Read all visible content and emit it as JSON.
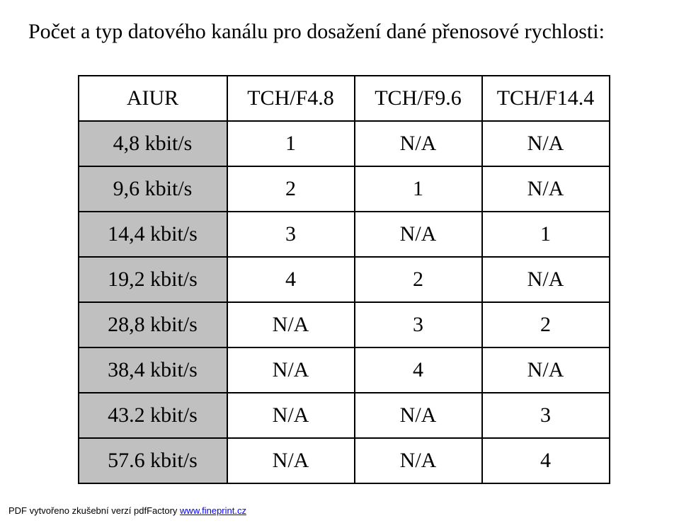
{
  "title": "Počet a typ datového kanálu pro dosažení dané přenosové rychlosti:",
  "table": {
    "columns": [
      "AIUR",
      "TCH/F4.8",
      "TCH/F9.6",
      "TCH/F14.4"
    ],
    "rows": [
      {
        "label": "4,8 kbit/s",
        "cells": [
          "1",
          "N/A",
          "N/A"
        ]
      },
      {
        "label": "9,6 kbit/s",
        "cells": [
          "2",
          "1",
          "N/A"
        ]
      },
      {
        "label": "14,4 kbit/s",
        "cells": [
          "3",
          "N/A",
          "1"
        ]
      },
      {
        "label": "19,2 kbit/s",
        "cells": [
          "4",
          "2",
          "N/A"
        ]
      },
      {
        "label": "28,8 kbit/s",
        "cells": [
          "N/A",
          "3",
          "2"
        ]
      },
      {
        "label": "38,4 kbit/s",
        "cells": [
          "N/A",
          "4",
          "N/A"
        ]
      },
      {
        "label": "43.2 kbit/s",
        "cells": [
          "N/A",
          "N/A",
          "3"
        ]
      },
      {
        "label": "57.6 kbit/s",
        "cells": [
          "N/A",
          "N/A",
          "4"
        ]
      }
    ],
    "rowhead_bg": "#c0c0c0",
    "border_color": "#000000",
    "font_family": "Times New Roman",
    "cell_fontsize": 30
  },
  "footer": {
    "prefix": "PDF vytvořeno zkušební verzí pdfFactory ",
    "link_text": "www.fineprint.cz",
    "link_href": "#"
  }
}
